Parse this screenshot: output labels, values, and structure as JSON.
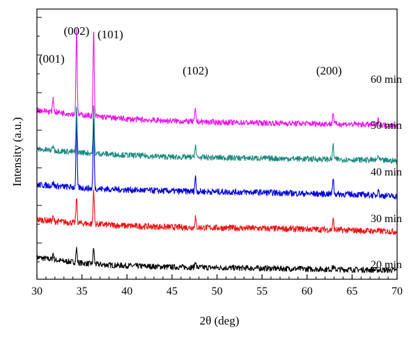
{
  "chart_data": {
    "type": "line",
    "xlabel": "2θ (deg)",
    "ylabel": "Intensity (a.u.)",
    "xlim": [
      30,
      70
    ],
    "x_ticks": [
      "30",
      "35",
      "40",
      "45",
      "50",
      "55",
      "60",
      "65",
      "70"
    ],
    "y_ticks_labeled": false,
    "grid": false,
    "legend": "none; series labeled inline at right",
    "peaks": [
      {
        "label": "(001)",
        "x": 31.8
      },
      {
        "label": "(002)",
        "x": 34.4
      },
      {
        "label": "(101)",
        "x": 36.3
      },
      {
        "label": "(102)",
        "x": 47.6
      },
      {
        "label": "(200)",
        "x": 62.9
      }
    ],
    "series": [
      {
        "name": "20 min",
        "color": "#000000",
        "noise": 0.55,
        "points": [
          [
            30,
            2.4
          ],
          [
            31,
            2.2
          ],
          [
            32,
            2.0
          ],
          [
            33,
            1.8
          ],
          [
            34,
            1.7
          ],
          [
            35,
            1.5
          ],
          [
            36,
            1.4
          ],
          [
            38,
            1.2
          ],
          [
            40,
            1.1
          ],
          [
            45,
            0.9
          ],
          [
            50,
            0.8
          ],
          [
            55,
            0.7
          ],
          [
            60,
            0.6
          ],
          [
            65,
            0.5
          ],
          [
            70,
            0.4
          ]
        ],
        "peaks": [
          [
            31.8,
            1.0
          ],
          [
            34.4,
            2.2
          ],
          [
            36.3,
            2.5
          ],
          [
            47.6,
            1.0
          ],
          [
            62.9,
            0.5
          ]
        ]
      },
      {
        "name": "30 min",
        "color": "#ee1111",
        "noise": 0.6,
        "points": [
          [
            30,
            8.3
          ],
          [
            32,
            8.0
          ],
          [
            34,
            7.8
          ],
          [
            36,
            7.6
          ],
          [
            40,
            7.3
          ],
          [
            45,
            7.1
          ],
          [
            50,
            7.0
          ],
          [
            55,
            6.9
          ],
          [
            60,
            6.8
          ],
          [
            65,
            6.6
          ],
          [
            70,
            6.4
          ]
        ],
        "peaks": [
          [
            31.8,
            0.6
          ],
          [
            34.4,
            4.0
          ],
          [
            36.3,
            5.5
          ],
          [
            47.6,
            1.6
          ],
          [
            62.9,
            1.6
          ]
        ]
      },
      {
        "name": "40 min",
        "color": "#0000dd",
        "noise": 0.6,
        "points": [
          [
            30,
            13.7
          ],
          [
            32,
            13.5
          ],
          [
            34,
            13.3
          ],
          [
            36,
            13.1
          ],
          [
            40,
            12.9
          ],
          [
            45,
            12.7
          ],
          [
            50,
            12.6
          ],
          [
            55,
            12.5
          ],
          [
            60,
            12.3
          ],
          [
            65,
            12.2
          ],
          [
            70,
            11.9
          ]
        ],
        "peaks": [
          [
            31.8,
            0.5
          ],
          [
            34.4,
            10.5
          ],
          [
            36.3,
            11.0
          ],
          [
            47.6,
            2.3
          ],
          [
            62.9,
            2.7
          ],
          [
            67.9,
            1.2
          ]
        ]
      },
      {
        "name": "50 min",
        "color": "#1a8a80",
        "noise": 0.55,
        "points": [
          [
            30,
            19.2
          ],
          [
            32,
            19.0
          ],
          [
            34,
            18.8
          ],
          [
            36,
            18.6
          ],
          [
            40,
            18.3
          ],
          [
            45,
            18.0
          ],
          [
            50,
            17.9
          ],
          [
            55,
            17.8
          ],
          [
            60,
            17.7
          ],
          [
            65,
            17.6
          ],
          [
            70,
            17.4
          ]
        ],
        "peaks": [
          [
            31.8,
            0.8
          ],
          [
            34.4,
            7.0
          ],
          [
            36.3,
            7.5
          ],
          [
            47.6,
            2.0
          ],
          [
            62.9,
            2.3
          ],
          [
            67.9,
            0.8
          ]
        ]
      },
      {
        "name": "60 min",
        "color": "#ee11ee",
        "noise": 0.55,
        "points": [
          [
            30,
            25.3
          ],
          [
            32,
            25.0
          ],
          [
            34,
            24.7
          ],
          [
            36,
            24.4
          ],
          [
            40,
            23.9
          ],
          [
            45,
            23.6
          ],
          [
            50,
            23.4
          ],
          [
            55,
            23.3
          ],
          [
            60,
            23.2
          ],
          [
            65,
            23.1
          ],
          [
            70,
            22.9
          ]
        ],
        "peaks": [
          [
            31.8,
            2.2
          ],
          [
            34.4,
            13.5
          ],
          [
            36.3,
            13.5
          ],
          [
            47.6,
            1.8
          ],
          [
            62.9,
            1.8
          ],
          [
            67.9,
            0.8
          ]
        ]
      }
    ]
  }
}
